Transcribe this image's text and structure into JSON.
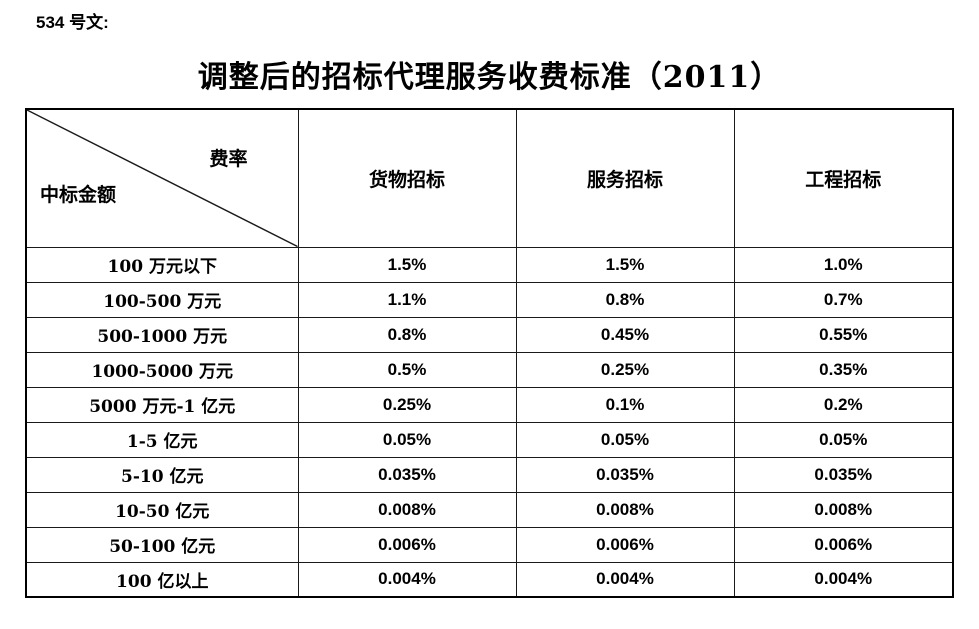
{
  "doc_label": "534 号文:",
  "title": "调整后的招标代理服务收费标准（2011）",
  "table": {
    "corner": {
      "top_right": "费率",
      "bottom_left": "中标金额"
    },
    "columns": [
      "货物招标",
      "服务招标",
      "工程招标"
    ],
    "rows": [
      {
        "range": "100 万元以下",
        "values": [
          "1.5%",
          "1.5%",
          "1.0%"
        ]
      },
      {
        "range": "100-500 万元",
        "values": [
          "1.1%",
          "0.8%",
          "0.7%"
        ]
      },
      {
        "range": "500-1000 万元",
        "values": [
          "0.8%",
          "0.45%",
          "0.55%"
        ]
      },
      {
        "range": "1000-5000 万元",
        "values": [
          "0.5%",
          "0.25%",
          "0.35%"
        ]
      },
      {
        "range": "5000 万元-1 亿元",
        "values": [
          "0.25%",
          "0.1%",
          "0.2%"
        ]
      },
      {
        "range": "1-5 亿元",
        "values": [
          "0.05%",
          "0.05%",
          "0.05%"
        ]
      },
      {
        "range": "5-10 亿元",
        "values": [
          "0.035%",
          "0.035%",
          "0.035%"
        ]
      },
      {
        "range": "10-50 亿元",
        "values": [
          "0.008%",
          "0.008%",
          "0.008%"
        ]
      },
      {
        "range": "50-100 亿元",
        "values": [
          "0.006%",
          "0.006%",
          "0.006%"
        ]
      },
      {
        "range": "100 亿以上",
        "values": [
          "0.004%",
          "0.004%",
          "0.004%"
        ]
      }
    ]
  },
  "colors": {
    "text": "#000000",
    "border_inner": "#1a1a1a",
    "border_outer": "#000000",
    "background": "#ffffff"
  }
}
